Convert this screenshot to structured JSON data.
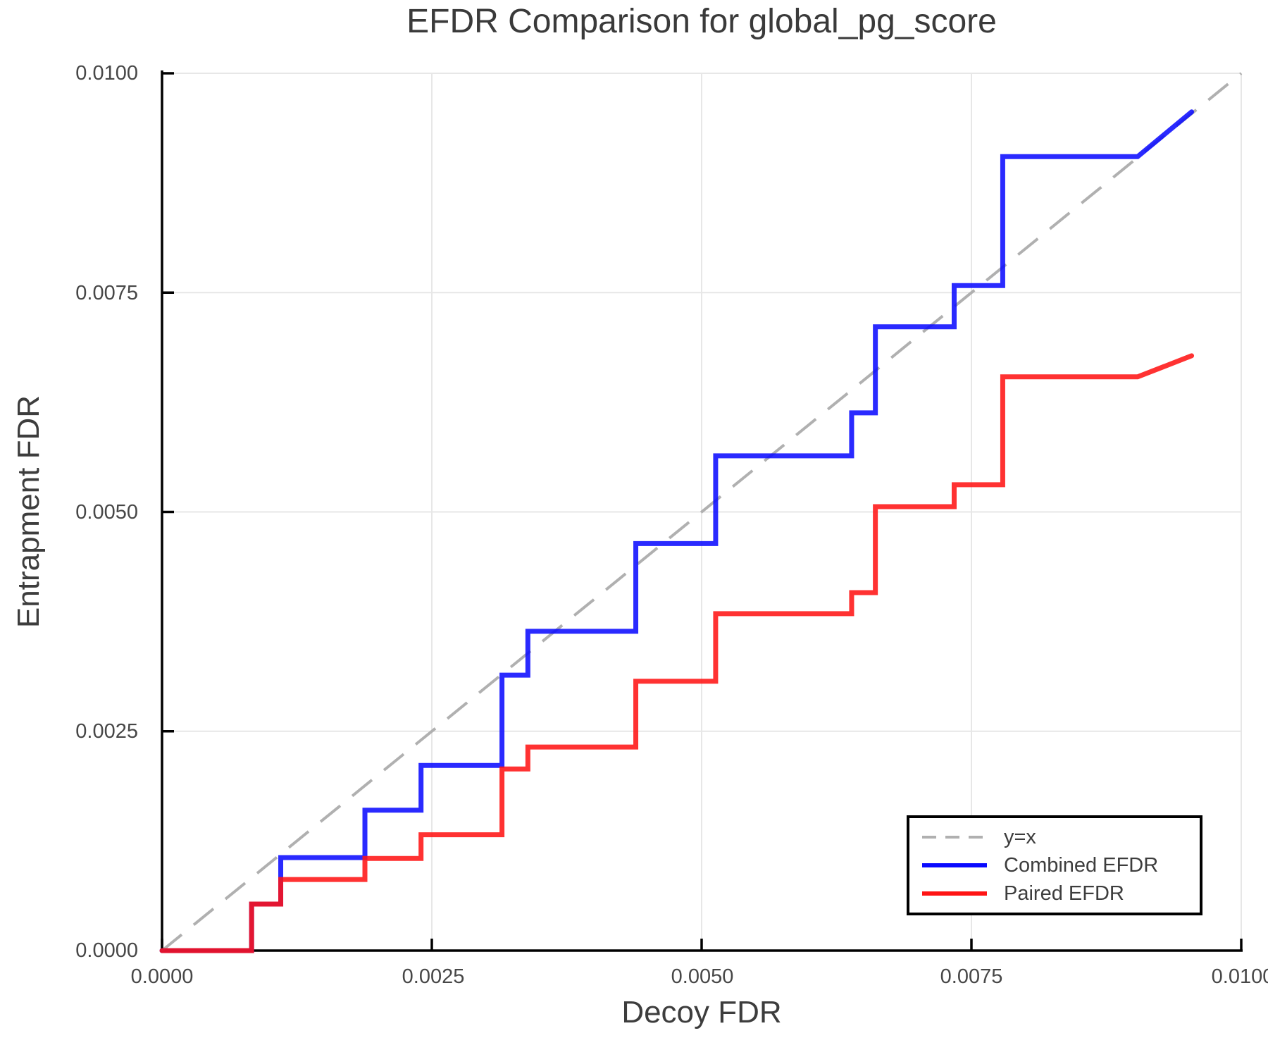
{
  "chart_data": {
    "type": "line",
    "title": "EFDR Comparison for global_pg_score",
    "xlabel": "Decoy FDR",
    "ylabel": "Entrapment FDR",
    "xlim": [
      0.0,
      0.01
    ],
    "ylim": [
      0.0,
      0.01
    ],
    "x_ticks": [
      0.0,
      0.0025,
      0.005,
      0.0075,
      0.01
    ],
    "y_ticks": [
      0.0,
      0.0025,
      0.005,
      0.0075,
      0.01
    ],
    "x_tick_labels": [
      "0.0000",
      "0.0025",
      "0.0050",
      "0.0075",
      "0.0100"
    ],
    "y_tick_labels": [
      "0.0000",
      "0.0025",
      "0.0050",
      "0.0075",
      "0.0100"
    ],
    "grid": true,
    "legend": {
      "position": "bottom-right",
      "items": [
        "y=x",
        "Combined EFDR",
        "Paired EFDR"
      ]
    },
    "reference_line": {
      "name": "y=x",
      "style": "dashed",
      "color": "#b0b0b0",
      "points": [
        [
          0.0,
          0.0
        ],
        [
          0.01,
          0.01
        ]
      ]
    },
    "series": [
      {
        "name": "Combined EFDR",
        "color": "#0a0aff",
        "step_mode": "post",
        "steps": [
          [
            0.0,
            0.0
          ],
          [
            0.00083,
            0.00053
          ],
          [
            0.0011,
            0.00106
          ],
          [
            0.00188,
            0.0016
          ],
          [
            0.0024,
            0.00211
          ],
          [
            0.00315,
            0.00314
          ],
          [
            0.00339,
            0.00364
          ],
          [
            0.00439,
            0.00464
          ],
          [
            0.00513,
            0.00564
          ],
          [
            0.00639,
            0.00613
          ],
          [
            0.00661,
            0.00711
          ],
          [
            0.00734,
            0.00758
          ],
          [
            0.00779,
            0.00905
          ]
        ],
        "tail": [
          [
            0.00904,
            0.00905
          ],
          [
            0.00954,
            0.00956
          ]
        ]
      },
      {
        "name": "Paired EFDR",
        "color": "#ff1414",
        "step_mode": "post",
        "steps": [
          [
            0.0,
            0.0
          ],
          [
            0.00083,
            0.00053
          ],
          [
            0.0011,
            0.00081
          ],
          [
            0.00188,
            0.00105
          ],
          [
            0.0024,
            0.00132
          ],
          [
            0.00315,
            0.00207
          ],
          [
            0.00339,
            0.00232
          ],
          [
            0.00439,
            0.00307
          ],
          [
            0.00513,
            0.00384
          ],
          [
            0.00639,
            0.00408
          ],
          [
            0.00661,
            0.00506
          ],
          [
            0.00734,
            0.00531
          ],
          [
            0.00779,
            0.00654
          ]
        ],
        "tail": [
          [
            0.00904,
            0.00654
          ],
          [
            0.00954,
            0.00678
          ]
        ]
      }
    ]
  }
}
